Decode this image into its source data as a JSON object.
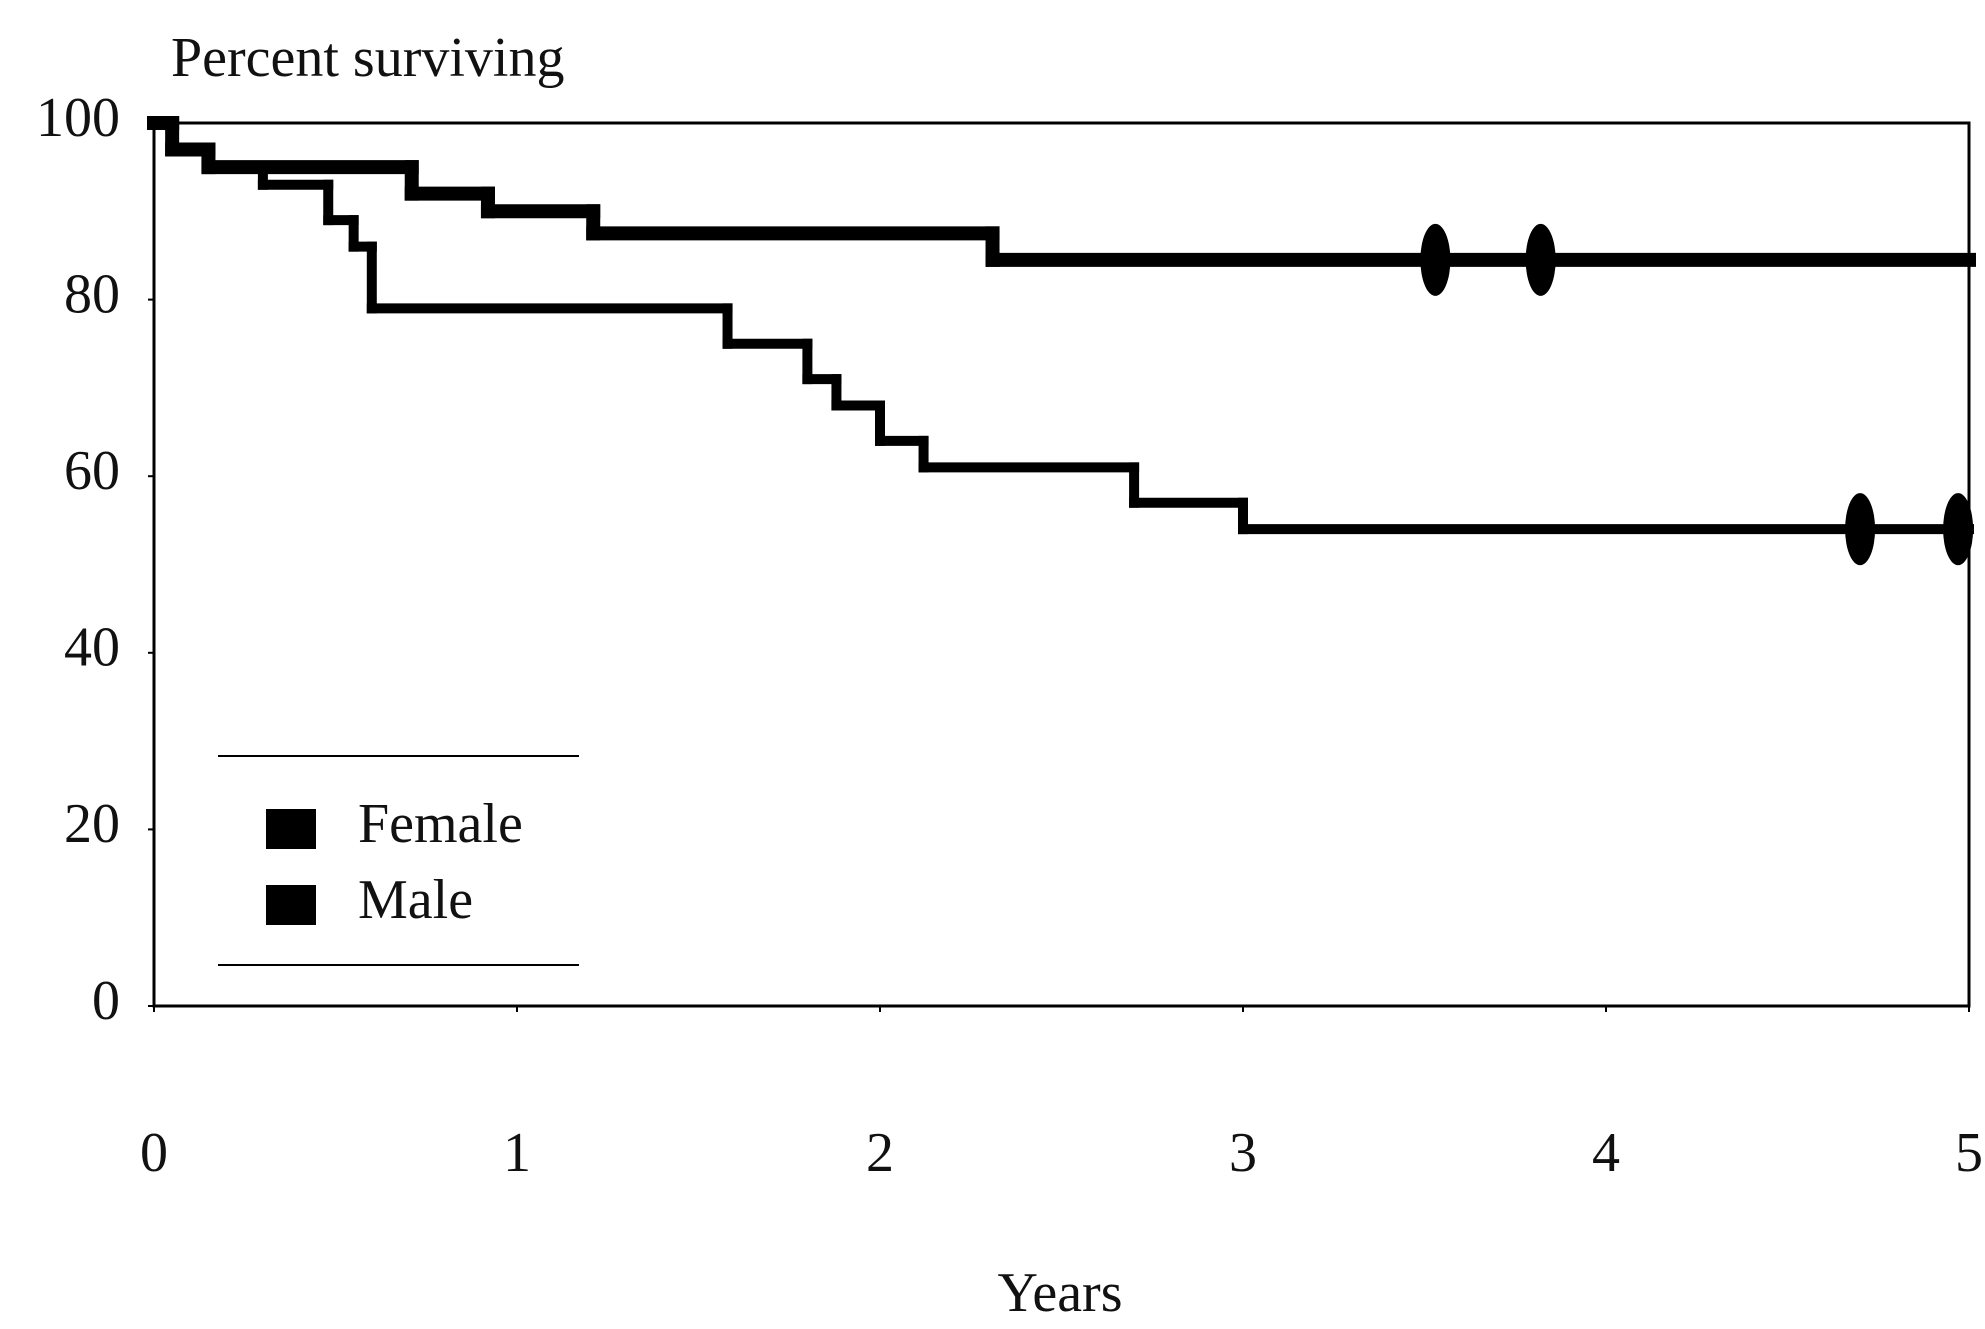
{
  "chart_data": {
    "type": "line",
    "step": "post",
    "y_label": "Percent surviving",
    "x_label": "Years",
    "xlim": [
      0,
      5
    ],
    "ylim": [
      0,
      100
    ],
    "xticks": [
      0,
      1,
      2,
      3,
      4,
      5
    ],
    "yticks": [
      0,
      20,
      40,
      60,
      80,
      100
    ],
    "grid": false,
    "legend": "lower left",
    "series": [
      {
        "name": "Female",
        "color": "#000000",
        "x": [
          0,
          0.05,
          0.15,
          0.71,
          0.92,
          1.21,
          2.31
        ],
        "values": [
          100,
          97,
          95,
          92,
          90,
          87.5,
          84.5
        ],
        "censored_x": [
          3.53,
          3.82
        ],
        "censored_values": [
          84.5,
          84.5
        ]
      },
      {
        "name": "Male",
        "color": "#000000",
        "x": [
          0,
          0.05,
          0.15,
          0.3,
          0.48,
          0.55,
          0.6,
          1.58,
          1.8,
          1.88,
          2.0,
          2.12,
          2.7,
          3.0
        ],
        "values": [
          100,
          97,
          95,
          93,
          89,
          86,
          79,
          75,
          71,
          68,
          64,
          61,
          57,
          54
        ],
        "censored_x": [
          4.7,
          4.97
        ],
        "censored_values": [
          54,
          54
        ]
      }
    ]
  }
}
